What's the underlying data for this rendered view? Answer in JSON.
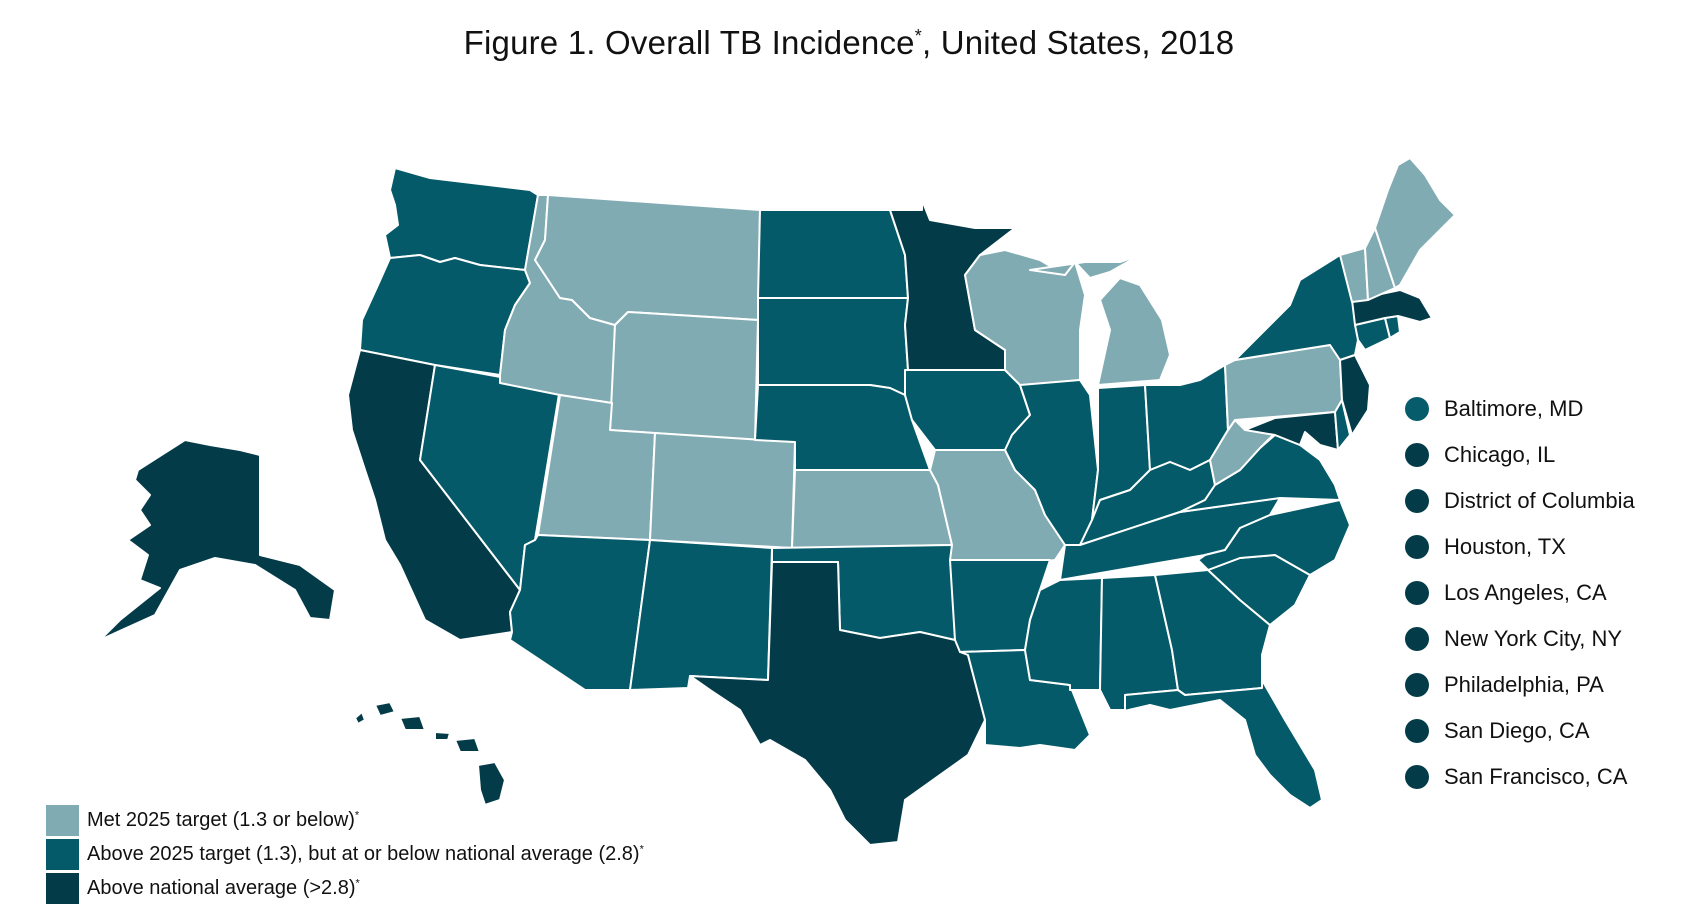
{
  "title": "Figure 1. Overall TB Incidence",
  "title_footnote": "*",
  "title_suffix": ", United States, 2018",
  "colors": {
    "met": "#80abb2",
    "above_target": "#045a68",
    "above_national": "#033c48",
    "baltimore_dot": "#075c6c",
    "city_dot": "#033c48"
  },
  "legend": [
    {
      "label": "Met 2025 target (1.3 or below)",
      "mark": "*",
      "category": "met"
    },
    {
      "label": "Above 2025 target (1.3), but at or below national average (2.8)",
      "mark": "*",
      "category": "above_target"
    },
    {
      "label": "Above national average (>2.8)",
      "mark": "*",
      "category": "above_national"
    }
  ],
  "cities": [
    {
      "name": "Baltimore, MD",
      "category": "baltimore_dot"
    },
    {
      "name": "Chicago, IL",
      "category": "city_dot"
    },
    {
      "name": "District of Columbia",
      "category": "city_dot"
    },
    {
      "name": "Houston, TX",
      "category": "city_dot"
    },
    {
      "name": "Los Angeles, CA",
      "category": "city_dot"
    },
    {
      "name": "New York City, NY",
      "category": "city_dot"
    },
    {
      "name": "Philadelphia, PA",
      "category": "city_dot"
    },
    {
      "name": "San Diego, CA",
      "category": "city_dot"
    },
    {
      "name": "San Francisco, CA",
      "category": "city_dot"
    }
  ],
  "states": {
    "WA": "above_target",
    "OR": "above_target",
    "CA": "above_national",
    "NV": "above_target",
    "ID": "met",
    "MT": "met",
    "WY": "met",
    "UT": "met",
    "CO": "met",
    "AZ": "above_target",
    "NM": "above_target",
    "ND": "above_target",
    "SD": "above_target",
    "NE": "above_target",
    "KS": "met",
    "OK": "above_target",
    "TX": "above_national",
    "MN": "above_national",
    "IA": "above_target",
    "MO": "met",
    "AR": "above_target",
    "LA": "above_target",
    "WI": "met",
    "IL": "above_target",
    "MI": "met",
    "IN": "above_target",
    "OH": "above_target",
    "KY": "above_target",
    "TN": "above_target",
    "MS": "above_target",
    "AL": "above_target",
    "GA": "above_target",
    "FL": "above_target",
    "SC": "above_target",
    "NC": "above_target",
    "VA": "above_target",
    "WV": "met",
    "PA": "met",
    "NY": "above_target",
    "VT": "met",
    "NH": "met",
    "ME": "met",
    "MA": "above_national",
    "RI": "above_target",
    "CT": "above_target",
    "NJ": "above_national",
    "DE": "above_target",
    "MD": "above_national",
    "AK": "above_national",
    "HI": "above_national"
  }
}
